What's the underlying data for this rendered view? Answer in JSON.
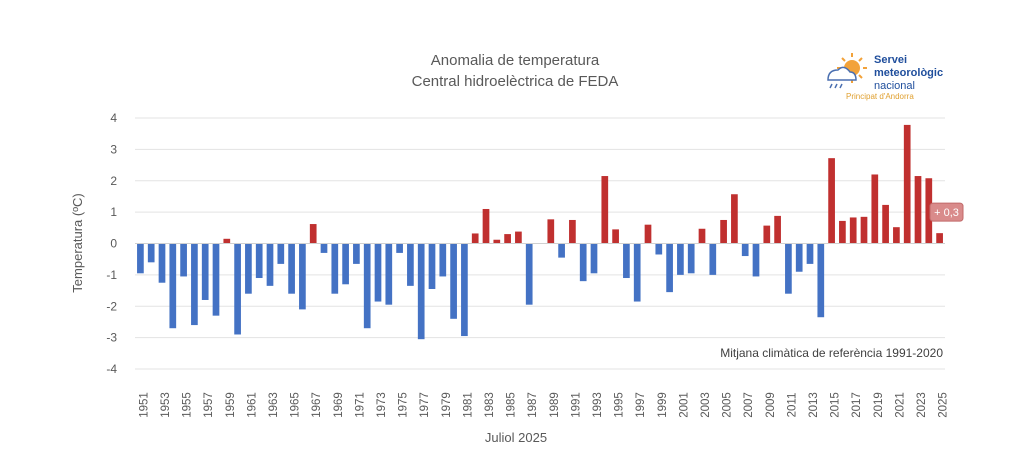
{
  "chart_data": {
    "type": "bar",
    "title": "Anomalia de temperatura",
    "subtitle": "Central hidroelèctrica de FEDA",
    "xlabel": "Juliol 2025",
    "ylabel": "Temperatura (ºC)",
    "ylim": [
      -4,
      4
    ],
    "yticks": [
      4,
      3,
      2,
      1,
      0,
      -1,
      -2,
      -3,
      -4
    ],
    "grid": true,
    "annotation": "Mitjana climàtica de referència 1991-2020",
    "last_value_label": "+ 0,3",
    "colors": {
      "positive": "#c0302f",
      "negative": "#4472c4"
    },
    "years": [
      1951,
      1952,
      1953,
      1954,
      1955,
      1956,
      1957,
      1958,
      1959,
      1960,
      1961,
      1962,
      1963,
      1964,
      1965,
      1966,
      1967,
      1968,
      1969,
      1970,
      1971,
      1972,
      1973,
      1974,
      1975,
      1976,
      1977,
      1978,
      1979,
      1980,
      1981,
      1982,
      1983,
      1984,
      1985,
      1986,
      1987,
      1988,
      1989,
      1990,
      1991,
      1992,
      1993,
      1994,
      1995,
      1996,
      1997,
      1998,
      1999,
      2000,
      2001,
      2002,
      2003,
      2004,
      2005,
      2006,
      2007,
      2008,
      2009,
      2010,
      2011,
      2012,
      2013,
      2014,
      2015,
      2016,
      2017,
      2018,
      2019,
      2020,
      2021,
      2022,
      2023,
      2024,
      2025
    ],
    "values": [
      -0.95,
      -0.6,
      -1.25,
      -2.7,
      -1.05,
      -2.6,
      -1.8,
      -2.3,
      0.15,
      -2.9,
      -1.6,
      -1.1,
      -1.35,
      -0.65,
      -1.6,
      -2.1,
      0.62,
      -0.3,
      -1.6,
      -1.3,
      -0.65,
      -2.7,
      -1.85,
      -1.95,
      -0.3,
      -1.35,
      -3.05,
      -1.45,
      -1.05,
      -2.4,
      -2.95,
      0.32,
      1.1,
      0.12,
      0.3,
      0.38,
      -1.95,
      0.0,
      0.77,
      -0.45,
      0.75,
      -1.2,
      -0.95,
      2.15,
      0.45,
      -1.1,
      -1.85,
      0.6,
      -0.35,
      -1.55,
      -1.0,
      -0.95,
      0.47,
      -1.0,
      0.75,
      1.57,
      -0.4,
      -1.05,
      0.57,
      0.88,
      -1.6,
      -0.9,
      -0.65,
      -2.35,
      2.72,
      0.72,
      0.83,
      0.85,
      2.2,
      1.23,
      0.52,
      3.78,
      2.15,
      2.08,
      0.33
    ]
  },
  "logo": {
    "line1": "Servei",
    "line2": "meteorològic",
    "line3": "nacional",
    "sub": "Principat d'Andorra"
  }
}
